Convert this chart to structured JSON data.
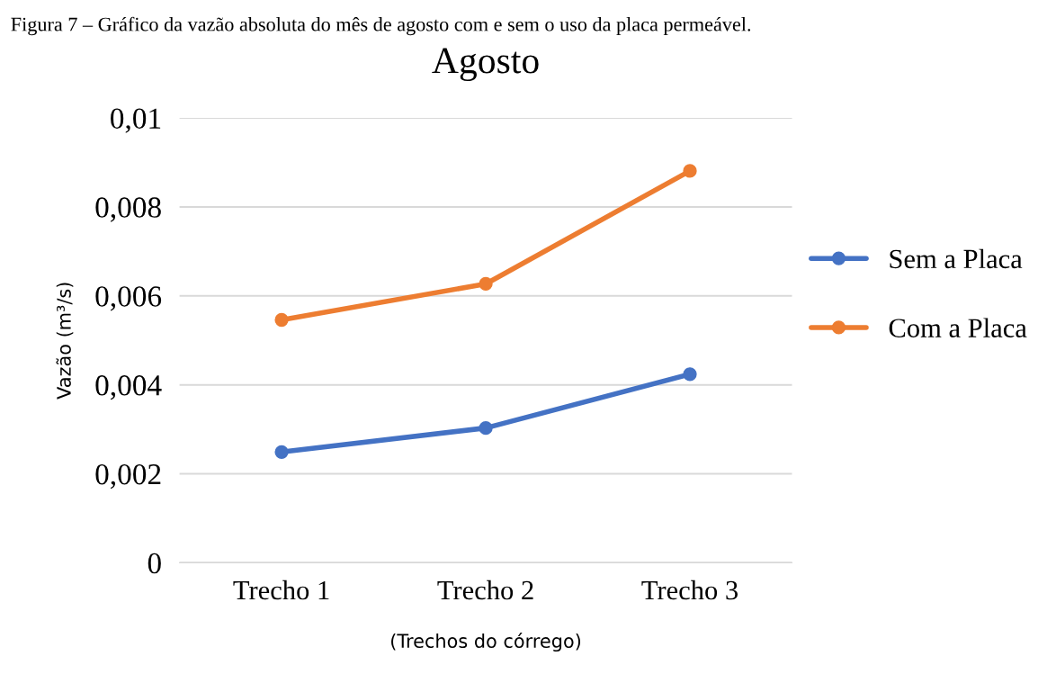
{
  "chart_data": {
    "type": "line",
    "title": "Agosto",
    "xlabel": "(Trechos do córrego)",
    "ylabel": "Vazão (m³/s)",
    "annotations": [
      "Figura 7 – Gráfico da vazão absoluta do mês de agosto com e sem o uso da placa permeável."
    ],
    "categories": [
      "Trecho 1",
      "Trecho 2",
      "Trecho 3"
    ],
    "series": [
      {
        "name": "Sem a Placa",
        "color": "#4472c4",
        "values": [
          0.00249,
          0.00303,
          0.00424
        ]
      },
      {
        "name": "Com a Placa",
        "color": "#ed7d31",
        "values": [
          0.00546,
          0.00627,
          0.00881
        ]
      }
    ],
    "ylim": [
      0,
      0.01
    ],
    "yticks": [
      {
        "value": 0,
        "label": "0"
      },
      {
        "value": 0.002,
        "label": "0,002"
      },
      {
        "value": 0.004,
        "label": "0,004"
      },
      {
        "value": 0.006,
        "label": "0,006"
      },
      {
        "value": 0.008,
        "label": "0,008"
      },
      {
        "value": 0.01,
        "label": "0,01"
      }
    ],
    "grid": "y",
    "legend": "right",
    "marker": "circle",
    "line_style": "solid"
  }
}
